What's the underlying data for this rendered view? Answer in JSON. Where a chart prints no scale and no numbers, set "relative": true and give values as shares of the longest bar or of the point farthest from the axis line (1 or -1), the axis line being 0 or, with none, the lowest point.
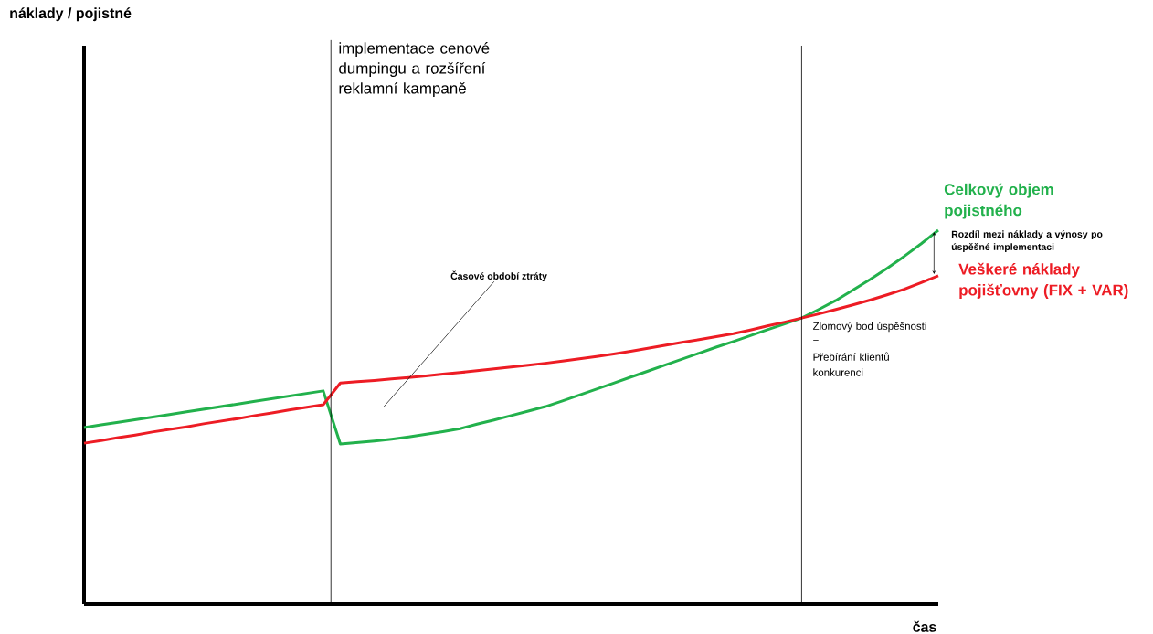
{
  "chart_data": {
    "type": "line",
    "relative": true,
    "xlabel": "čas",
    "tick_labels": false,
    "categories": [
      null,
      null,
      null,
      null,
      null,
      null,
      null,
      null,
      null,
      null,
      null,
      null,
      null,
      null,
      null,
      null,
      null,
      null,
      null,
      null,
      null,
      null,
      null,
      null,
      null,
      null,
      null,
      null,
      null,
      null,
      null,
      null,
      null,
      null,
      null,
      null,
      null,
      null,
      null,
      null,
      null,
      null,
      null,
      null,
      null,
      null,
      null,
      null,
      null,
      null,
      null
    ],
    "series": [
      {
        "name": "Celkový objem pojistného",
        "color": "#22b14c",
        "values": [
          0.472,
          0.479,
          0.486,
          0.493,
          0.5,
          0.507,
          0.514,
          0.521,
          0.528,
          0.535,
          0.542,
          0.549,
          0.556,
          0.563,
          0.57,
          0.428,
          0.432,
          0.436,
          0.441,
          0.447,
          0.454,
          0.461,
          0.469,
          0.481,
          0.492,
          0.504,
          0.516,
          0.528,
          0.543,
          0.559,
          0.575,
          0.591,
          0.607,
          0.623,
          0.639,
          0.655,
          0.671,
          0.687,
          0.702,
          0.718,
          0.734,
          0.749,
          0.765,
          0.788,
          0.812,
          0.84,
          0.868,
          0.898,
          0.93,
          0.964,
          1.0
        ]
      },
      {
        "name": "Veškeré náklady pojišťovny (FIX + VAR)",
        "color": "#ed1c24",
        "values": [
          0.43,
          0.437,
          0.445,
          0.452,
          0.46,
          0.467,
          0.474,
          0.482,
          0.489,
          0.496,
          0.504,
          0.511,
          0.519,
          0.526,
          0.533,
          0.591,
          0.595,
          0.598,
          0.602,
          0.606,
          0.61,
          0.615,
          0.619,
          0.624,
          0.629,
          0.634,
          0.639,
          0.644,
          0.65,
          0.656,
          0.662,
          0.669,
          0.676,
          0.684,
          0.692,
          0.7,
          0.707,
          0.715,
          0.723,
          0.733,
          0.744,
          0.754,
          0.765,
          0.776,
          0.788,
          0.8,
          0.813,
          0.827,
          0.842,
          0.86,
          0.878
        ]
      }
    ],
    "annotations": [
      "Časové období ztráty",
      "Rozdíl mezi náklady a výnosy po úspěšné implementaci",
      "implementace cenové dumpingu a rozšíření reklamní kampaně",
      "Zlomový bod úspěšnosti = Přebírání klientů konkurenci",
      "náklady / pojistné"
    ]
  }
}
